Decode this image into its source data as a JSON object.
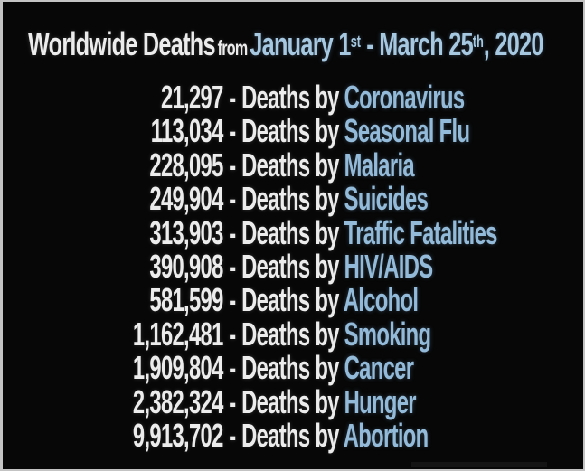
{
  "title": {
    "main": "Worldwide Deaths",
    "connector": "from",
    "date_start": "January 1",
    "date_start_sup": "st",
    "date_dash": " - ",
    "date_end": "March 25",
    "date_end_sup": "th",
    "date_year": ", 2020"
  },
  "list": {
    "separator": "-",
    "label": "Deaths by ",
    "rows": [
      {
        "count": "21,297",
        "cause": "Coronavirus"
      },
      {
        "count": "113,034",
        "cause": "Seasonal Flu"
      },
      {
        "count": "228,095",
        "cause": "Malaria"
      },
      {
        "count": "249,904",
        "cause": "Suicides"
      },
      {
        "count": "313,903",
        "cause": "Traffic Fatalities"
      },
      {
        "count": "390,908",
        "cause": "HIV/AIDS"
      },
      {
        "count": "581,599",
        "cause": "Alcohol"
      },
      {
        "count": "1,162,481",
        "cause": "Smoking"
      },
      {
        "count": "1,909,804",
        "cause": "Cancer"
      },
      {
        "count": "2,382,324",
        "cause": "Hunger"
      },
      {
        "count": "9,913,702",
        "cause": "Abortion"
      }
    ]
  },
  "colors": {
    "background": "#070707",
    "frame_border": "#c3c3c3",
    "text_primary": "#ececec",
    "cause_blue": "#93bad8",
    "title_date_blue": "#a6c8e0"
  },
  "chart_data": {
    "type": "table",
    "title": "Worldwide Deaths from January 1st - March 25th, 2020",
    "categories": [
      "Coronavirus",
      "Seasonal Flu",
      "Malaria",
      "Suicides",
      "Traffic Fatalities",
      "HIV/AIDS",
      "Alcohol",
      "Smoking",
      "Cancer",
      "Hunger",
      "Abortion"
    ],
    "values": [
      21297,
      113034,
      228095,
      249904,
      313903,
      390908,
      581599,
      1162481,
      1909804,
      2382324,
      9913702
    ]
  }
}
